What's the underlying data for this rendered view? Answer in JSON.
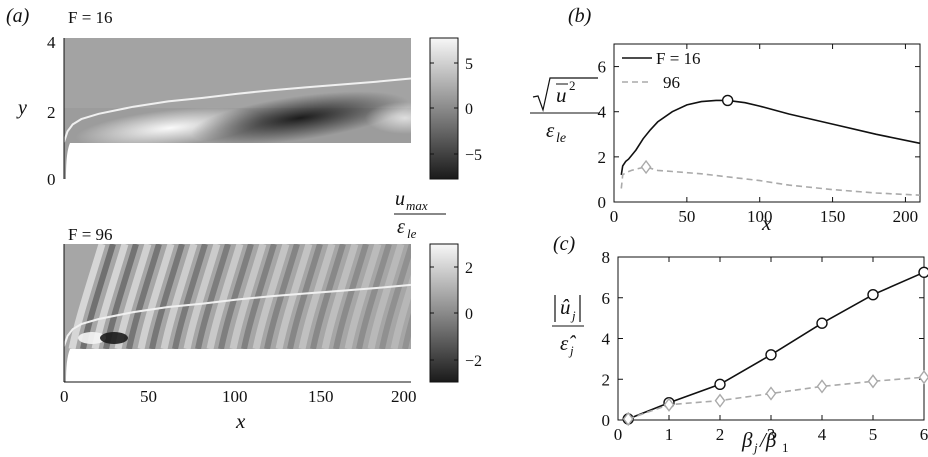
{
  "figure": {
    "panel_labels": {
      "a": "(a)",
      "b": "(b)",
      "c": "(c)"
    }
  },
  "chart_data": [
    {
      "id": "a-top",
      "type": "heatmap",
      "title": "F = 16",
      "ylabel": "y",
      "xlim": [
        0,
        200
      ],
      "ylim": [
        0,
        4
      ],
      "yticks": [
        "0",
        "2",
        "4"
      ],
      "colorbar": {
        "ticks": [
          "5",
          "0",
          "−5"
        ],
        "range": [
          -7,
          9
        ]
      },
      "boundary_layer_edge": {
        "x": [
          0,
          2,
          5,
          10,
          20,
          40,
          60,
          80,
          100,
          120,
          140,
          160,
          180,
          200
        ],
        "y": [
          1.05,
          1.35,
          1.55,
          1.7,
          1.85,
          2.05,
          2.2,
          2.3,
          2.42,
          2.52,
          2.6,
          2.68,
          2.76,
          2.85
        ]
      },
      "masked_region": {
        "y_below": 1.05
      },
      "colors": {
        "edge_line": "#f0f0f0",
        "mask": "#ffffff"
      }
    },
    {
      "id": "a-bottom",
      "type": "heatmap",
      "title": "F = 96",
      "xlabel": "x",
      "xticks": [
        "0",
        "50",
        "100",
        "150",
        "200"
      ],
      "xlim": [
        0,
        200
      ],
      "colorbar": {
        "label_num": "u",
        "label_num_sub": "max",
        "label_den": "ε",
        "label_den_sub": "le",
        "ticks": [
          "2",
          "0",
          "−2"
        ],
        "range": [
          -2.7,
          2.7
        ]
      },
      "colors": {
        "edge_line": "#f0f0f0",
        "mask": "#ffffff"
      }
    },
    {
      "id": "b",
      "type": "line",
      "xlabel": "x",
      "ylabel": "√u² / εle",
      "xlim": [
        0,
        210
      ],
      "ylim": [
        0,
        7
      ],
      "xticks": [
        "0",
        "50",
        "100",
        "150",
        "200"
      ],
      "yticks": [
        "0",
        "2",
        "4",
        "6"
      ],
      "legend": {
        "entries": [
          "F = 16",
          "96"
        ],
        "position": "top-left"
      },
      "series": [
        {
          "name": "F = 16",
          "style": "solid",
          "color": "#111111",
          "x": [
            5,
            6,
            8,
            10,
            15,
            20,
            25,
            30,
            40,
            50,
            60,
            70,
            78,
            90,
            100,
            120,
            150,
            180,
            210
          ],
          "y": [
            1.2,
            1.6,
            1.8,
            1.9,
            2.3,
            2.8,
            3.2,
            3.55,
            4.0,
            4.3,
            4.45,
            4.5,
            4.5,
            4.4,
            4.25,
            3.9,
            3.45,
            3.0,
            2.6
          ]
        },
        {
          "name": "96",
          "style": "dashed",
          "color": "#aaaaaa",
          "x": [
            5,
            6,
            8,
            12,
            18,
            22,
            30,
            40,
            60,
            80,
            100,
            120,
            150,
            180,
            210
          ],
          "y": [
            0.6,
            1.2,
            1.3,
            1.4,
            1.5,
            1.55,
            1.4,
            1.35,
            1.25,
            1.1,
            0.95,
            0.75,
            0.55,
            0.4,
            0.3
          ]
        }
      ],
      "markers": [
        {
          "series": "F = 16",
          "x": 78,
          "y": 4.5,
          "shape": "circle"
        },
        {
          "series": "96",
          "x": 22,
          "y": 1.55,
          "shape": "diamond"
        }
      ]
    },
    {
      "id": "c",
      "type": "line",
      "xlabel": "βj/β1",
      "ylabel": "|ûj| / ε̂j",
      "xlim": [
        0,
        6
      ],
      "ylim": [
        0,
        8
      ],
      "xticks": [
        "0",
        "1",
        "2",
        "3",
        "4",
        "5",
        "6"
      ],
      "yticks": [
        "0",
        "2",
        "4",
        "6",
        "8"
      ],
      "series": [
        {
          "name": "F = 16",
          "style": "solid",
          "marker": "circle",
          "color": "#111111",
          "x": [
            0.2,
            1,
            2,
            3,
            4,
            5,
            6
          ],
          "y": [
            0.05,
            0.85,
            1.75,
            3.2,
            4.75,
            6.15,
            7.25
          ]
        },
        {
          "name": "96",
          "style": "dashed",
          "marker": "diamond",
          "color": "#aaaaaa",
          "x": [
            0.2,
            1,
            2,
            3,
            4,
            5,
            6
          ],
          "y": [
            0.05,
            0.75,
            0.95,
            1.3,
            1.65,
            1.9,
            2.1
          ]
        }
      ]
    }
  ]
}
